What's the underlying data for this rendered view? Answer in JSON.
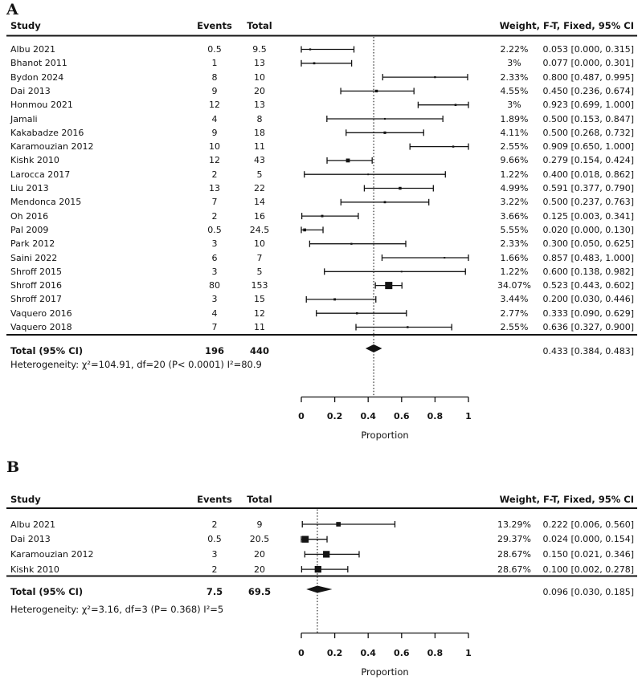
{
  "colors": {
    "ink": "#141414",
    "background": "#ffffff"
  },
  "chart_data": [
    {
      "type": "forest",
      "panel_label": "A",
      "columns": {
        "study": "Study",
        "events": "Events",
        "total": "Total",
        "weight_ci": "Weight, F-T, Fixed, 95% CI"
      },
      "axis": {
        "min": 0,
        "max": 1,
        "ticks": [
          0,
          0.2,
          0.4,
          0.6,
          0.8,
          1
        ],
        "tick_labels": [
          "0",
          "0.2",
          "0.4",
          "0.6",
          "0.8",
          "1"
        ],
        "title": "Proportion"
      },
      "studies": [
        {
          "study": "Albu 2021",
          "events": "0.5",
          "total": "9.5",
          "weight": "2.22%",
          "est": 0.053,
          "lo": 0.0,
          "hi": 0.315,
          "ci_label": "0.053 [0.000, 0.315]"
        },
        {
          "study": "Bhanot 2011",
          "events": "1",
          "total": "13",
          "weight": "3%",
          "est": 0.077,
          "lo": 0.0,
          "hi": 0.301,
          "ci_label": "0.077 [0.000, 0.301]"
        },
        {
          "study": "Bydon 2024",
          "events": "8",
          "total": "10",
          "weight": "2.33%",
          "est": 0.8,
          "lo": 0.487,
          "hi": 0.995,
          "ci_label": "0.800 [0.487, 0.995]"
        },
        {
          "study": "Dai 2013",
          "events": "9",
          "total": "20",
          "weight": "4.55%",
          "est": 0.45,
          "lo": 0.236,
          "hi": 0.674,
          "ci_label": "0.450 [0.236, 0.674]"
        },
        {
          "study": "Honmou 2021",
          "events": "12",
          "total": "13",
          "weight": "3%",
          "est": 0.923,
          "lo": 0.699,
          "hi": 1.0,
          "ci_label": "0.923 [0.699, 1.000]"
        },
        {
          "study": "Jamali",
          "events": "4",
          "total": "8",
          "weight": "1.89%",
          "est": 0.5,
          "lo": 0.153,
          "hi": 0.847,
          "ci_label": "0.500 [0.153, 0.847]"
        },
        {
          "study": "Kakabadze 2016",
          "events": "9",
          "total": "18",
          "weight": "4.11%",
          "est": 0.5,
          "lo": 0.268,
          "hi": 0.732,
          "ci_label": "0.500 [0.268, 0.732]"
        },
        {
          "study": "Karamouzian 2012",
          "events": "10",
          "total": "11",
          "weight": "2.55%",
          "est": 0.909,
          "lo": 0.65,
          "hi": 1.0,
          "ci_label": "0.909 [0.650, 1.000]"
        },
        {
          "study": "Kishk 2010",
          "events": "12",
          "total": "43",
          "weight": "9.66%",
          "est": 0.279,
          "lo": 0.154,
          "hi": 0.424,
          "ci_label": "0.279 [0.154, 0.424]"
        },
        {
          "study": "Larocca 2017",
          "events": "2",
          "total": "5",
          "weight": "1.22%",
          "est": 0.4,
          "lo": 0.018,
          "hi": 0.862,
          "ci_label": "0.400 [0.018, 0.862]"
        },
        {
          "study": "Liu 2013",
          "events": "13",
          "total": "22",
          "weight": "4.99%",
          "est": 0.591,
          "lo": 0.377,
          "hi": 0.79,
          "ci_label": "0.591 [0.377, 0.790]"
        },
        {
          "study": "Mendonca 2015",
          "events": "7",
          "total": "14",
          "weight": "3.22%",
          "est": 0.5,
          "lo": 0.237,
          "hi": 0.763,
          "ci_label": "0.500 [0.237, 0.763]"
        },
        {
          "study": "Oh 2016",
          "events": "2",
          "total": "16",
          "weight": "3.66%",
          "est": 0.125,
          "lo": 0.003,
          "hi": 0.341,
          "ci_label": "0.125 [0.003, 0.341]"
        },
        {
          "study": "Pal 2009",
          "events": "0.5",
          "total": "24.5",
          "weight": "5.55%",
          "est": 0.02,
          "lo": 0.0,
          "hi": 0.13,
          "ci_label": "0.020 [0.000, 0.130]"
        },
        {
          "study": "Park 2012",
          "events": "3",
          "total": "10",
          "weight": "2.33%",
          "est": 0.3,
          "lo": 0.05,
          "hi": 0.625,
          "ci_label": "0.300 [0.050, 0.625]"
        },
        {
          "study": "Saini 2022",
          "events": "6",
          "total": "7",
          "weight": "1.66%",
          "est": 0.857,
          "lo": 0.483,
          "hi": 1.0,
          "ci_label": "0.857 [0.483, 1.000]"
        },
        {
          "study": "Shroff 2015",
          "events": "3",
          "total": "5",
          "weight": "1.22%",
          "est": 0.6,
          "lo": 0.138,
          "hi": 0.982,
          "ci_label": "0.600 [0.138, 0.982]"
        },
        {
          "study": "Shroff 2016",
          "events": "80",
          "total": "153",
          "weight": "34.07%",
          "est": 0.523,
          "lo": 0.443,
          "hi": 0.602,
          "ci_label": "0.523 [0.443, 0.602]"
        },
        {
          "study": "Shroff 2017",
          "events": "3",
          "total": "15",
          "weight": "3.44%",
          "est": 0.2,
          "lo": 0.03,
          "hi": 0.446,
          "ci_label": "0.200 [0.030, 0.446]"
        },
        {
          "study": "Vaquero 2016",
          "events": "4",
          "total": "12",
          "weight": "2.77%",
          "est": 0.333,
          "lo": 0.09,
          "hi": 0.629,
          "ci_label": "0.333 [0.090, 0.629]"
        },
        {
          "study": "Vaquero 2018",
          "events": "7",
          "total": "11",
          "weight": "2.55%",
          "est": 0.636,
          "lo": 0.327,
          "hi": 0.9,
          "ci_label": "0.636 [0.327, 0.900]"
        }
      ],
      "overall": {
        "label": "Total (95% CI)",
        "events": "196",
        "total": "440",
        "est": 0.433,
        "lo": 0.384,
        "hi": 0.483,
        "ci_label": "0.433 [0.384, 0.483]"
      },
      "heterogeneity": "Heterogeneity: χ²=104.91, df=20 (P< 0.0001) I²=80.9"
    },
    {
      "type": "forest",
      "panel_label": "B",
      "columns": {
        "study": "Study",
        "events": "Events",
        "total": "Total",
        "weight_ci": "Weight, F-T, Fixed, 95% CI"
      },
      "axis": {
        "min": 0,
        "max": 1,
        "ticks": [
          0,
          0.2,
          0.4,
          0.6,
          0.8,
          1
        ],
        "tick_labels": [
          "0",
          "0.2",
          "0.4",
          "0.6",
          "0.8",
          "1"
        ],
        "title": "Proportion"
      },
      "studies": [
        {
          "study": "Albu 2021",
          "events": "2",
          "total": "9",
          "weight": "13.29%",
          "est": 0.222,
          "lo": 0.006,
          "hi": 0.56,
          "ci_label": "0.222 [0.006, 0.560]"
        },
        {
          "study": "Dai 2013",
          "events": "0.5",
          "total": "20.5",
          "weight": "29.37%",
          "est": 0.024,
          "lo": 0.0,
          "hi": 0.154,
          "ci_label": "0.024 [0.000, 0.154]"
        },
        {
          "study": "Karamouzian 2012",
          "events": "3",
          "total": "20",
          "weight": "28.67%",
          "est": 0.15,
          "lo": 0.021,
          "hi": 0.346,
          "ci_label": "0.150 [0.021, 0.346]"
        },
        {
          "study": "Kishk 2010",
          "events": "2",
          "total": "20",
          "weight": "28.67%",
          "est": 0.1,
          "lo": 0.002,
          "hi": 0.278,
          "ci_label": "0.100 [0.002, 0.278]"
        }
      ],
      "overall": {
        "label": "Total (95% CI)",
        "events": "7.5",
        "total": "69.5",
        "est": 0.096,
        "lo": 0.03,
        "hi": 0.185,
        "ci_label": "0.096 [0.030, 0.185]"
      },
      "heterogeneity": "Heterogeneity: χ²=3.16, df=3 (P= 0.368) I²=5"
    }
  ]
}
